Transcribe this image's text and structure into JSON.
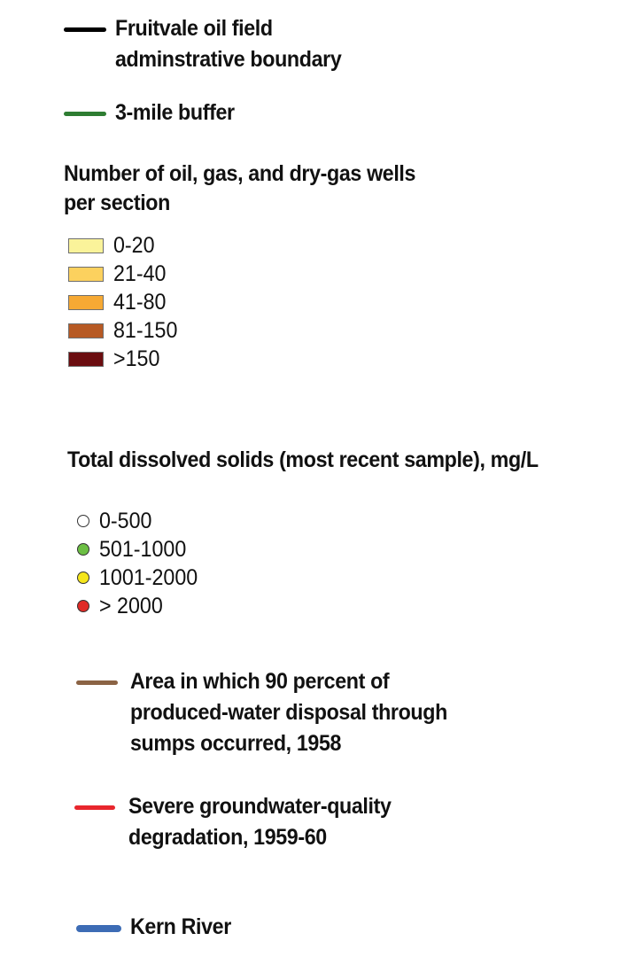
{
  "legend": {
    "boundary": {
      "label": "Fruitvale oil field\nadminstrative boundary",
      "color": "#000000"
    },
    "buffer": {
      "label": "3-mile buffer",
      "color": "#2e7d32"
    },
    "wells": {
      "title": "Number of oil, gas, and dry-gas wells\nper section",
      "classes": [
        {
          "label": "0-20",
          "color": "#faf39a"
        },
        {
          "label": "21-40",
          "color": "#fcd15e"
        },
        {
          "label": "41-80",
          "color": "#f6a934"
        },
        {
          "label": "81-150",
          "color": "#b75a24"
        },
        {
          "label": ">150",
          "color": "#6b0d10"
        }
      ]
    },
    "tds": {
      "title": "Total dissolved solids (most recent sample), mg/L",
      "classes": [
        {
          "label": "0-500",
          "color": "#ffffff"
        },
        {
          "label": "501-1000",
          "color": "#6cbf44"
        },
        {
          "label": "1001-2000",
          "color": "#f5e61c"
        },
        {
          "label": "> 2000",
          "color": "#e02a26"
        }
      ]
    },
    "sumps": {
      "label": "Area in which 90 percent of\nproduced-water disposal through\nsumps occurred, 1958",
      "color": "#8b6344"
    },
    "degradation": {
      "label": "Severe groundwater-quality\ndegradation, 1959-60",
      "color": "#e8262d"
    },
    "river": {
      "label": "Kern River",
      "color": "#3d6cb5"
    }
  }
}
